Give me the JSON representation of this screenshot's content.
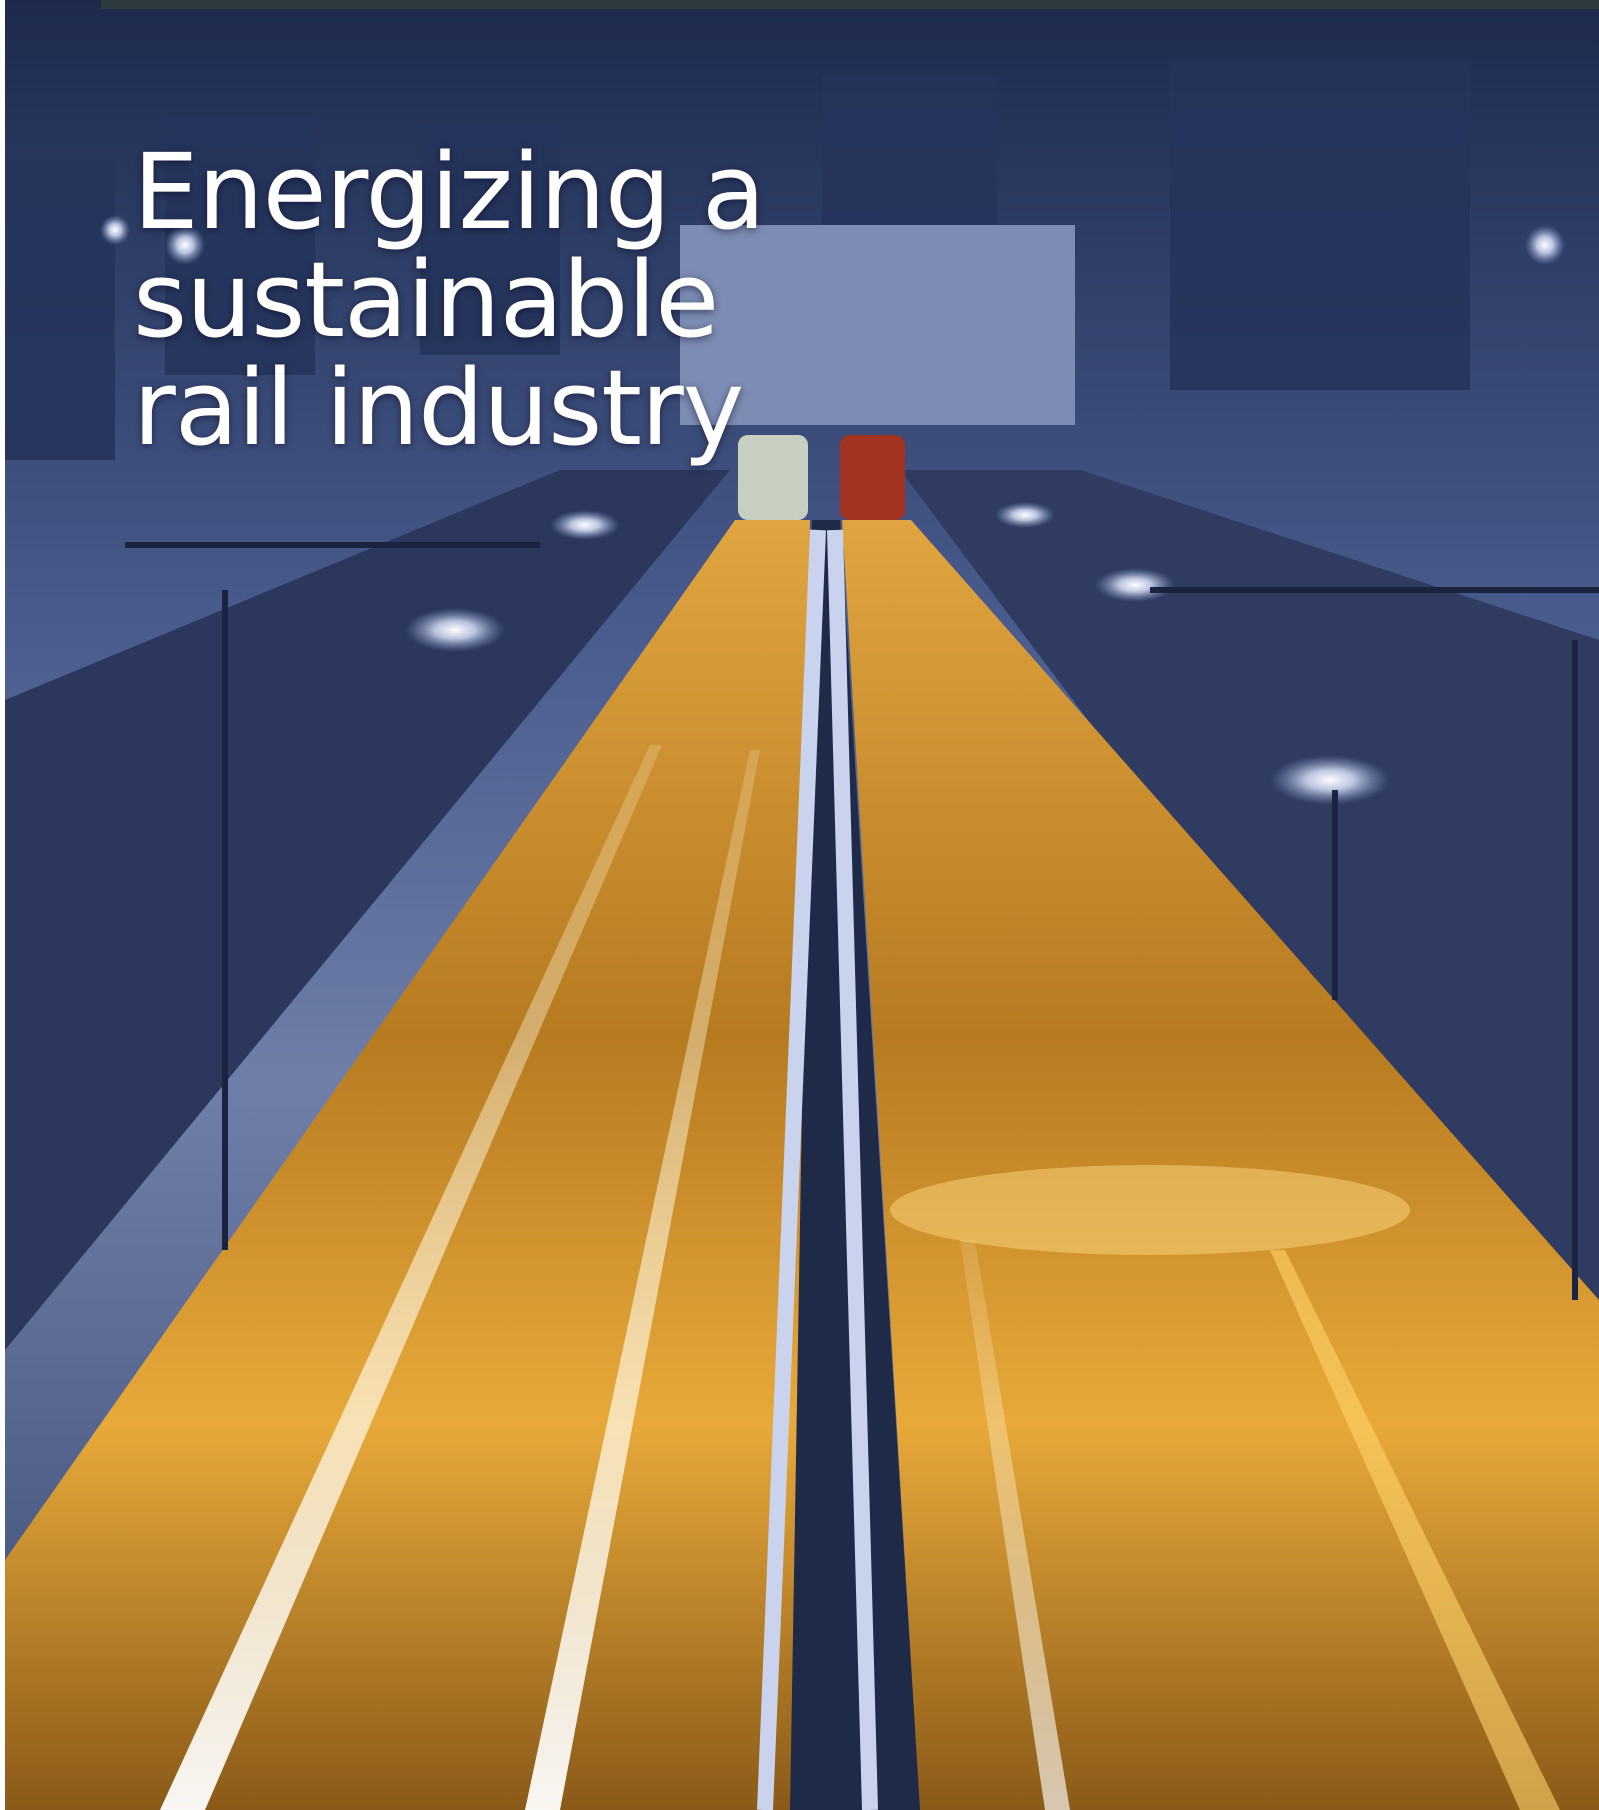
{
  "cover": {
    "title_lines": [
      "Energizing a",
      "sustainable",
      "rail industry"
    ]
  }
}
